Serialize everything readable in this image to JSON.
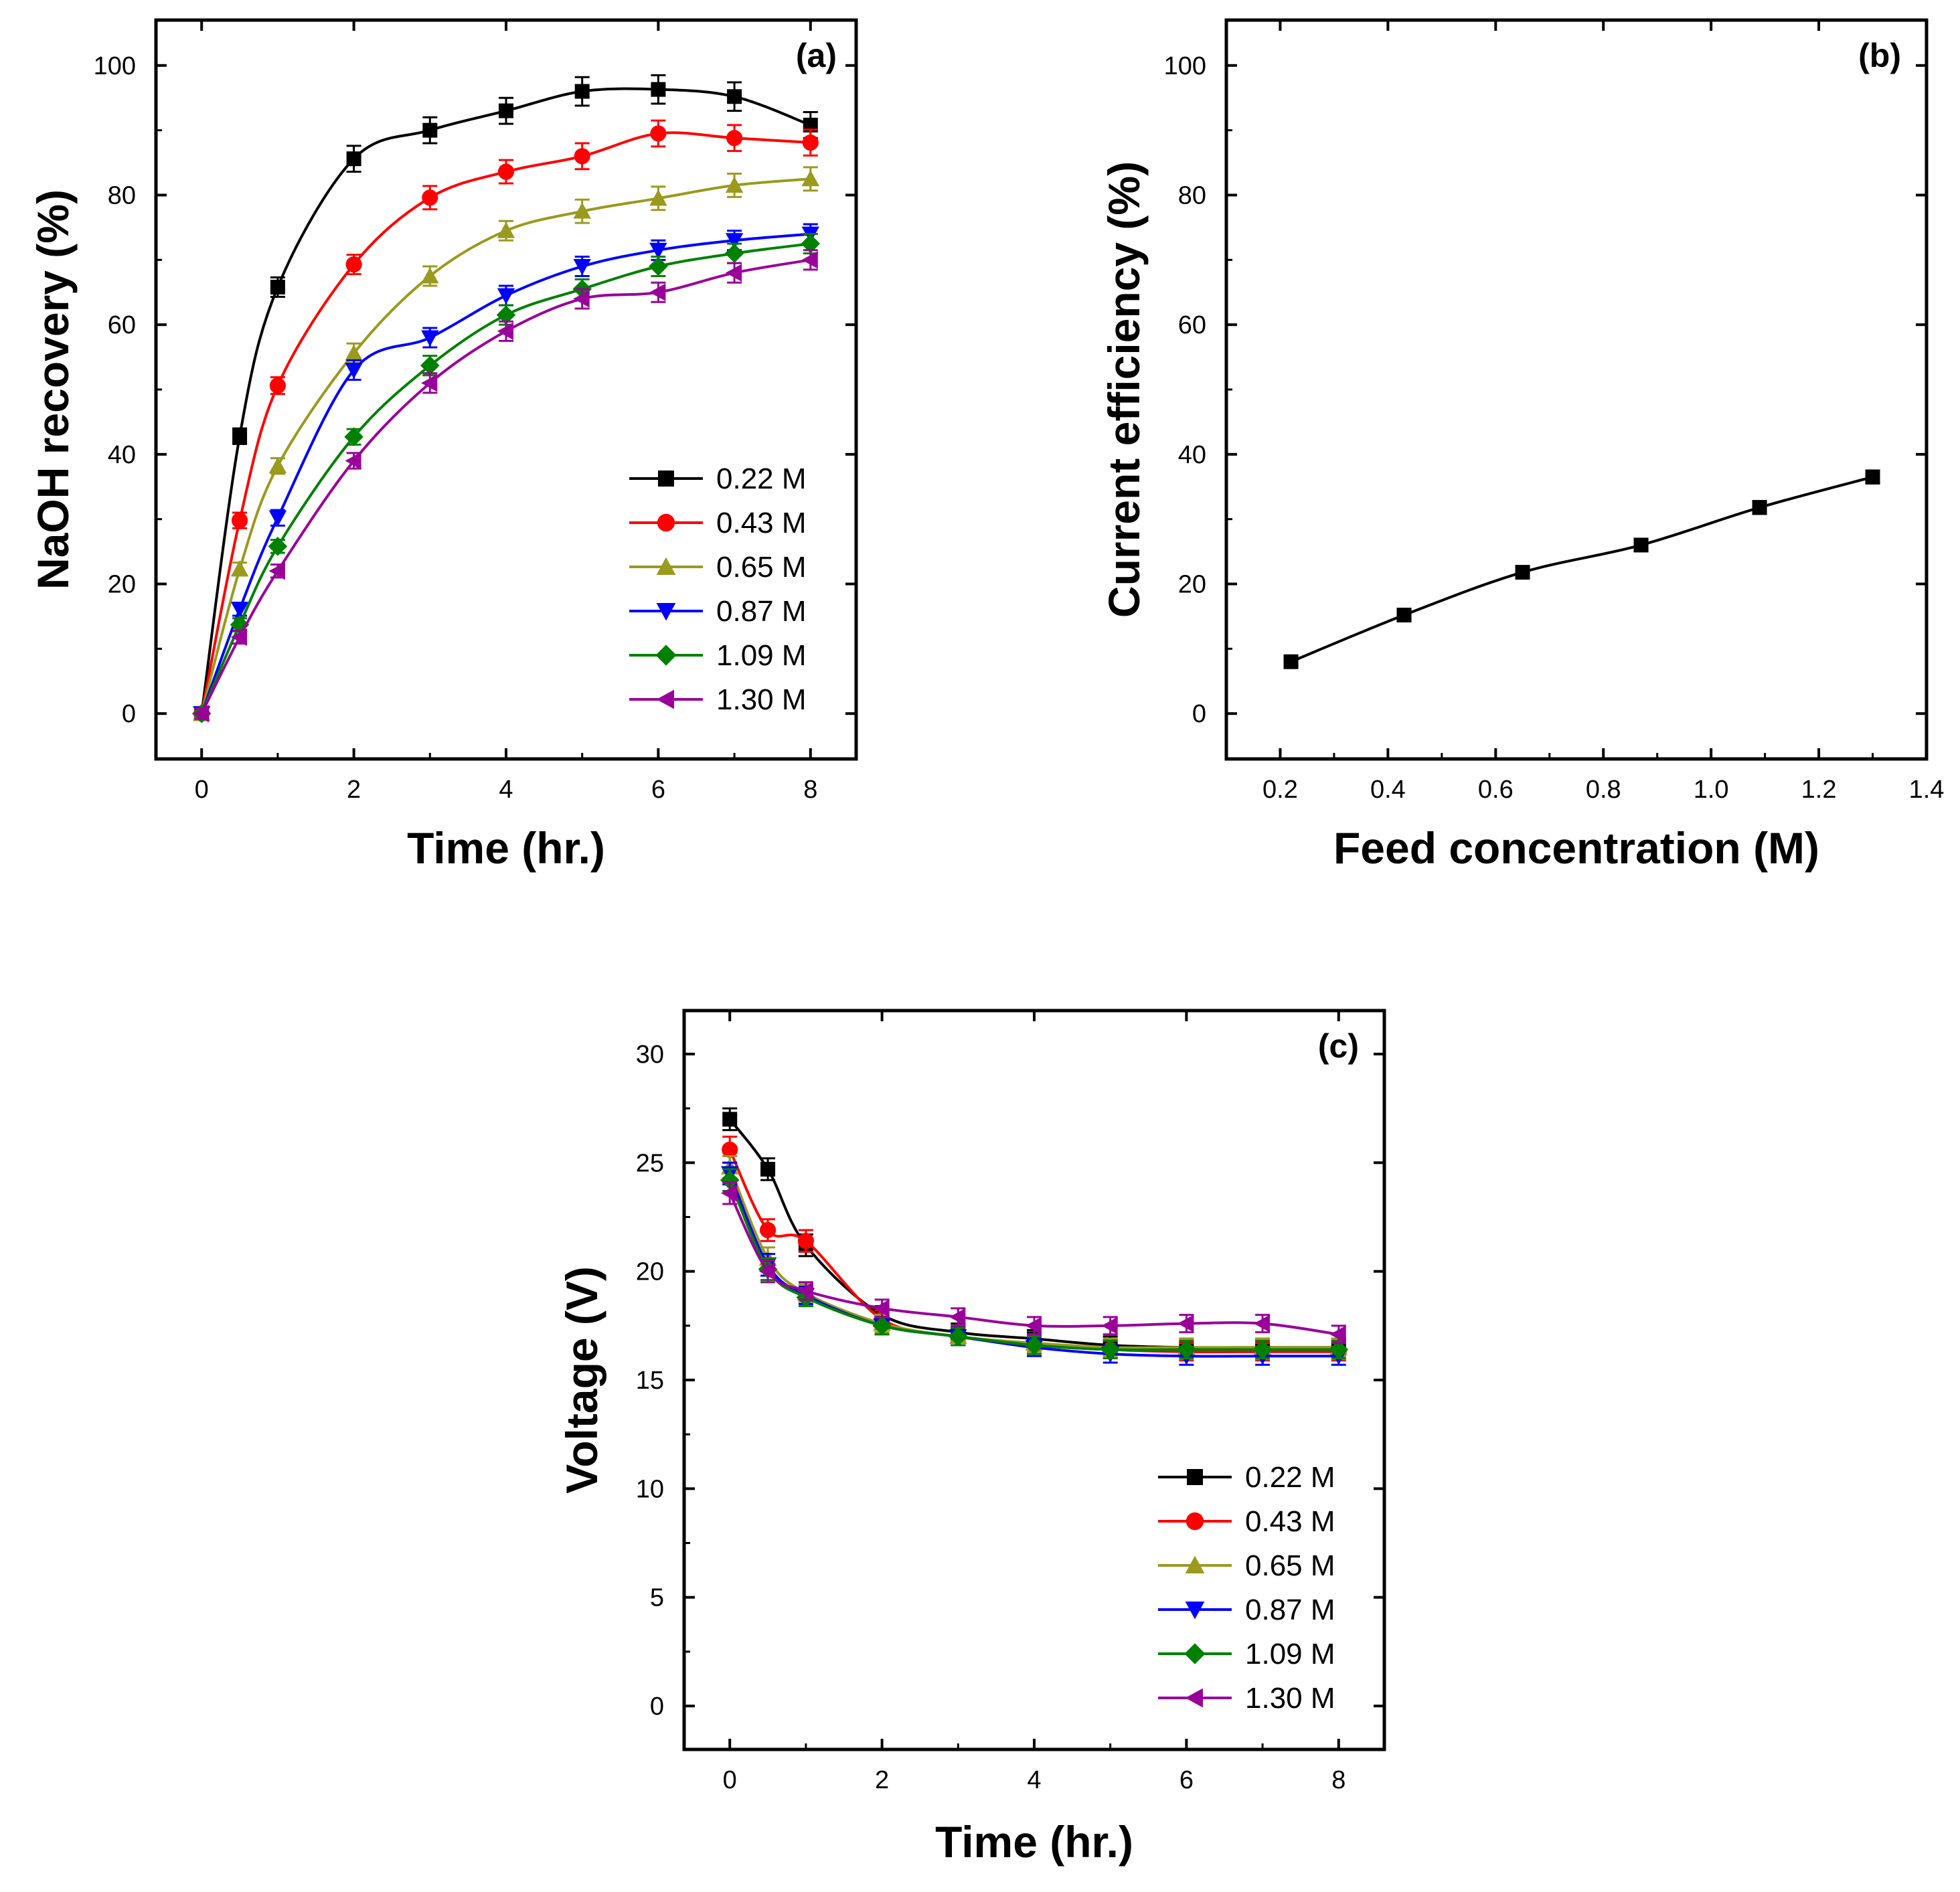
{
  "chart_data": [
    {
      "type": "line",
      "panel_label": "(a)",
      "xlabel": "Time (hr.)",
      "ylabel": "NaOH recovery (%)",
      "xlim": [
        -0.6,
        8.6
      ],
      "ylim": [
        -7,
        107
      ],
      "xticks": [
        0,
        2,
        4,
        6,
        8
      ],
      "yticks": [
        0,
        20,
        40,
        60,
        80,
        100
      ],
      "x": [
        0,
        0.5,
        1,
        2,
        3,
        4,
        5,
        6,
        7,
        8
      ],
      "legend_position": "bottom-right",
      "series": [
        {
          "name": "0.22 M",
          "color": "#000000",
          "marker": "square",
          "values": [
            0,
            42.8,
            65.8,
            85.6,
            90.0,
            93.0,
            96.0,
            96.3,
            95.2,
            90.8
          ],
          "err": [
            0.8,
            1.2,
            1.5,
            2.0,
            2.0,
            2.0,
            2.2,
            2.2,
            2.2,
            2.0
          ]
        },
        {
          "name": "0.43 M",
          "color": "#ff0000",
          "marker": "circle",
          "values": [
            0,
            29.8,
            50.6,
            69.3,
            79.6,
            83.6,
            86.0,
            89.5,
            88.8,
            88.1
          ],
          "err": [
            0.8,
            1.2,
            1.3,
            1.5,
            1.8,
            1.8,
            2.0,
            2.0,
            2.0,
            2.0
          ]
        },
        {
          "name": "0.65 M",
          "color": "#9a9a1e",
          "marker": "triangle-up",
          "values": [
            0,
            22.3,
            38.2,
            55.6,
            67.5,
            74.5,
            77.5,
            79.5,
            81.5,
            82.5
          ],
          "err": [
            0.8,
            1.0,
            1.2,
            1.5,
            1.5,
            1.5,
            1.8,
            1.8,
            1.8,
            1.8
          ]
        },
        {
          "name": "0.87 M",
          "color": "#0000ff",
          "marker": "triangle-down",
          "values": [
            0,
            16.1,
            30.2,
            53.0,
            58.0,
            64.5,
            69.0,
            71.5,
            73.0,
            74.0
          ],
          "err": [
            0.8,
            1.0,
            1.2,
            1.5,
            1.5,
            1.5,
            1.5,
            1.5,
            1.5,
            1.5
          ]
        },
        {
          "name": "1.09 M",
          "color": "#008000",
          "marker": "diamond",
          "values": [
            0,
            13.7,
            25.8,
            42.7,
            53.7,
            61.5,
            65.5,
            69.0,
            71.0,
            72.5
          ],
          "err": [
            0.8,
            1.0,
            1.0,
            1.2,
            1.5,
            1.5,
            1.5,
            1.5,
            1.5,
            1.5
          ]
        },
        {
          "name": "1.30 M",
          "color": "#990099",
          "marker": "triangle-left",
          "values": [
            0,
            11.8,
            22.0,
            39.0,
            51.0,
            59.0,
            64.0,
            65.0,
            68.0,
            70.0
          ],
          "err": [
            0.8,
            1.0,
            1.0,
            1.2,
            1.5,
            1.5,
            1.5,
            1.5,
            1.5,
            1.5
          ]
        }
      ]
    },
    {
      "type": "line",
      "panel_label": "(b)",
      "xlabel": "Feed concentration (M)",
      "ylabel": "Current efficiency (%)",
      "xlim": [
        0.1,
        1.4
      ],
      "ylim": [
        -7,
        107
      ],
      "xticks": [
        0.2,
        0.4,
        0.6,
        0.8,
        1.0,
        1.2,
        1.4
      ],
      "xtick_labels": [
        "0.2",
        "0.4",
        "0.6",
        "0.8",
        "1.0",
        "1.2",
        "1.4"
      ],
      "yticks": [
        0,
        20,
        40,
        60,
        80,
        100
      ],
      "x": [
        0.22,
        0.43,
        0.65,
        0.87,
        1.09,
        1.3
      ],
      "series": [
        {
          "name": "Current efficiency",
          "color": "#000000",
          "marker": "square",
          "values": [
            8.0,
            15.2,
            21.8,
            26.0,
            31.8,
            36.5
          ],
          "err": [
            0.6,
            0.6,
            0.8,
            0.8,
            1.0,
            1.0
          ]
        }
      ]
    },
    {
      "type": "line",
      "panel_label": "(c)",
      "xlabel": "Time (hr.)",
      "ylabel": "Voltage (V)",
      "xlim": [
        -0.6,
        8.6
      ],
      "ylim": [
        -2,
        32
      ],
      "xticks": [
        0,
        2,
        4,
        6,
        8
      ],
      "yticks": [
        0,
        5,
        10,
        15,
        20,
        25,
        30
      ],
      "x": [
        0,
        0.5,
        1,
        2,
        3,
        4,
        5,
        6,
        7,
        8
      ],
      "legend_position": "bottom-right",
      "series": [
        {
          "name": "0.22 M",
          "color": "#000000",
          "marker": "square",
          "values": [
            27.0,
            24.7,
            21.2,
            18.0,
            17.2,
            16.9,
            16.6,
            16.5,
            16.5,
            16.5
          ],
          "err": [
            0.5,
            0.5,
            0.5,
            0.4,
            0.4,
            0.4,
            0.4,
            0.4,
            0.4,
            0.4
          ]
        },
        {
          "name": "0.43 M",
          "color": "#ff0000",
          "marker": "circle",
          "values": [
            25.6,
            21.9,
            21.4,
            17.8,
            17.0,
            16.6,
            16.4,
            16.3,
            16.3,
            16.3
          ],
          "err": [
            0.6,
            0.5,
            0.5,
            0.4,
            0.4,
            0.4,
            0.4,
            0.4,
            0.4,
            0.4
          ]
        },
        {
          "name": "0.65 M",
          "color": "#9a9a1e",
          "marker": "triangle-up",
          "values": [
            24.8,
            20.6,
            19.0,
            17.6,
            17.0,
            16.7,
            16.5,
            16.5,
            16.5,
            16.5
          ],
          "err": [
            0.5,
            0.5,
            0.4,
            0.4,
            0.4,
            0.4,
            0.4,
            0.4,
            0.4,
            0.4
          ]
        },
        {
          "name": "0.87 M",
          "color": "#0000ff",
          "marker": "triangle-down",
          "values": [
            24.5,
            20.3,
            18.9,
            17.5,
            17.0,
            16.5,
            16.2,
            16.1,
            16.1,
            16.1
          ],
          "err": [
            0.5,
            0.5,
            0.4,
            0.4,
            0.4,
            0.4,
            0.4,
            0.4,
            0.4,
            0.4
          ]
        },
        {
          "name": "1.09 M",
          "color": "#008000",
          "marker": "diamond",
          "values": [
            24.2,
            20.1,
            18.8,
            17.5,
            17.0,
            16.6,
            16.4,
            16.4,
            16.4,
            16.4
          ],
          "err": [
            0.5,
            0.5,
            0.4,
            0.4,
            0.4,
            0.4,
            0.4,
            0.4,
            0.4,
            0.4
          ]
        },
        {
          "name": "1.30 M",
          "color": "#990099",
          "marker": "triangle-left",
          "values": [
            23.6,
            20.0,
            19.1,
            18.3,
            17.9,
            17.5,
            17.5,
            17.6,
            17.6,
            17.1
          ],
          "err": [
            0.5,
            0.5,
            0.4,
            0.4,
            0.4,
            0.4,
            0.4,
            0.4,
            0.4,
            0.4
          ]
        }
      ]
    }
  ]
}
